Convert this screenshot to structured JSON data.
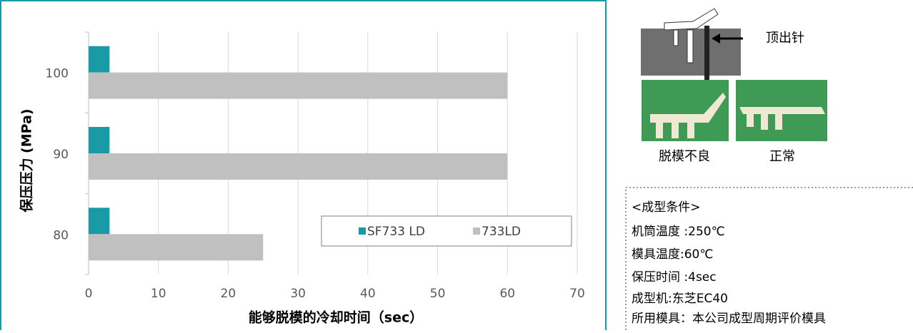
{
  "chart_data": {
    "type": "bar",
    "orientation": "horizontal",
    "x_label": "能够脱模的冷却时间（sec）",
    "y_label": "保压压力 (MPa)",
    "categories": [
      "80",
      "90",
      "100"
    ],
    "series": [
      {
        "name": "SF733 LD",
        "color": "#1a9aa5",
        "values": [
          3,
          3,
          3
        ]
      },
      {
        "name": "733LD",
        "color": "#c0c0c0",
        "values": [
          25,
          60,
          60
        ]
      }
    ],
    "xlim": [
      0,
      70
    ],
    "xticks": [
      0,
      10,
      20,
      30,
      40,
      50,
      60,
      70
    ],
    "grid": true,
    "legend": "lower-right"
  },
  "figure": {
    "pin_label": "顶出针",
    "photo_labels": [
      "脱模不良",
      "正常"
    ]
  },
  "conditions": {
    "title": "<成型条件>",
    "lines": [
      "机筒温度 :250℃",
      "模具温度:60℃",
      "保压时间 :4sec",
      "成型机:东芝EC40",
      "所用模具：本公司成型周期评价模具"
    ]
  }
}
